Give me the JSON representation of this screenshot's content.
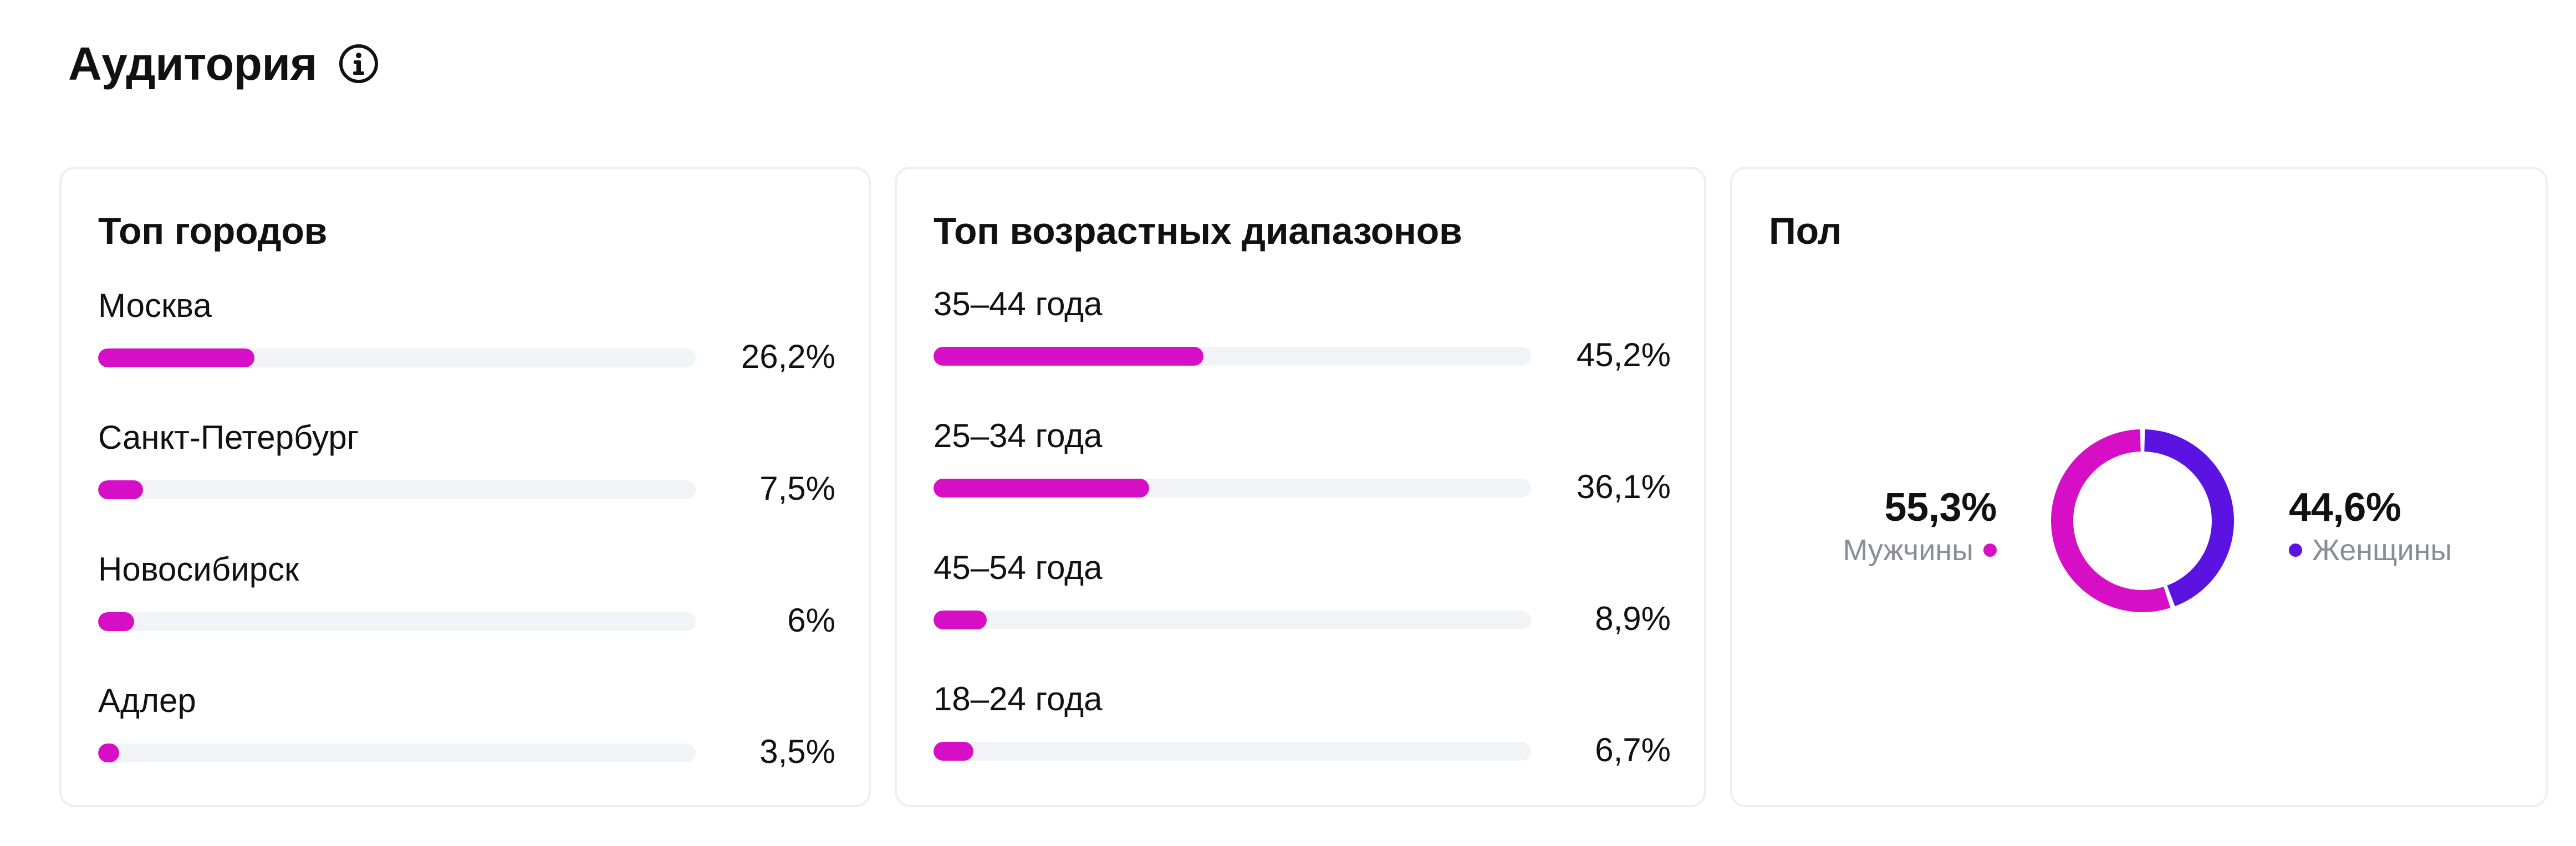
{
  "header": {
    "title": "Аудитория",
    "info_icon": "info-circle-icon"
  },
  "cities": {
    "title": "Топ городов",
    "items": [
      {
        "label": "Москва",
        "value": "26,2%",
        "fraction": 0.262
      },
      {
        "label": "Санкт-Петербург",
        "value": "7,5%",
        "fraction": 0.075
      },
      {
        "label": "Новосибирск",
        "value": "6%",
        "fraction": 0.06
      },
      {
        "label": "Адлер",
        "value": "3,5%",
        "fraction": 0.035
      }
    ]
  },
  "ages": {
    "title": "Топ возрастных диапазонов",
    "items": [
      {
        "label": "35–44 года",
        "value": "45,2%",
        "fraction": 0.452
      },
      {
        "label": "25–34 года",
        "value": "36,1%",
        "fraction": 0.361
      },
      {
        "label": "45–54 года",
        "value": "8,9%",
        "fraction": 0.089
      },
      {
        "label": "18–24 года",
        "value": "6,7%",
        "fraction": 0.067
      }
    ]
  },
  "gender": {
    "title": "Пол",
    "male": {
      "label": "Мужчины",
      "value": "55,3%",
      "fraction": 0.553,
      "color": "#d60fc6"
    },
    "female": {
      "label": "Женщины",
      "value": "44,6%",
      "fraction": 0.446,
      "color": "#5a13e0"
    }
  },
  "colors": {
    "bar_fill": "#d60fc6",
    "bar_track": "#f2f3f6",
    "card_border": "#eceef2",
    "muted_text": "#8a8d96"
  }
}
